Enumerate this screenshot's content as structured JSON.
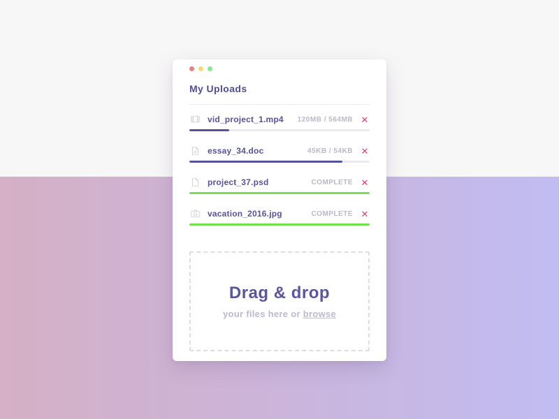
{
  "window": {
    "title": "My Uploads",
    "traffic_lights": {
      "close": "close",
      "minimize": "minimize",
      "zoom": "zoom"
    }
  },
  "uploads": [
    {
      "name": "vid_project_1.mp4",
      "icon": "film-icon",
      "status": "120MB / 564MB",
      "progress": 22,
      "bar_color": "#55529c",
      "remove_label": "✕"
    },
    {
      "name": "essay_34.doc",
      "icon": "document-icon",
      "status": "45KB / 54KB",
      "progress": 85,
      "bar_color": "#55529c",
      "remove_label": "✕"
    },
    {
      "name": "project_37.psd",
      "icon": "file-icon",
      "status": "COMPLETE",
      "progress": 100,
      "bar_color": "#70e24b",
      "remove_label": "✕"
    },
    {
      "name": "vacation_2016.jpg",
      "icon": "camera-icon",
      "status": "COMPLETE",
      "progress": 100,
      "bar_color": "#70e24b",
      "remove_label": "✕"
    }
  ],
  "dropzone": {
    "title": "Drag & drop",
    "subtitle_prefix": "your files here or ",
    "browse_label": "browse"
  },
  "colors": {
    "accent_indigo": "#55529c",
    "success_green": "#70e24b",
    "danger_pink": "#e13f6f",
    "muted_text": "#bab8c9",
    "bg_gradient_left": "#d5b0c6",
    "bg_gradient_right": "#c1bcf2",
    "bg_top": "#f8f7f7"
  }
}
